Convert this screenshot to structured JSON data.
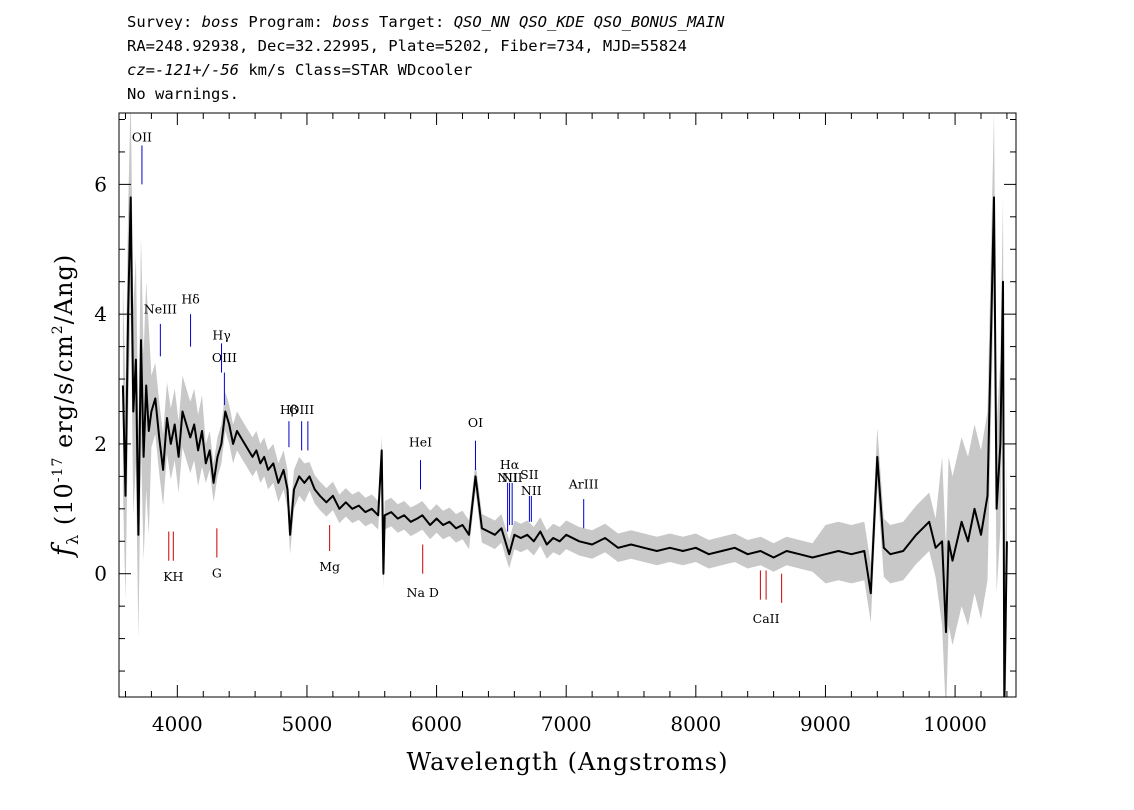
{
  "header": {
    "line1": {
      "survey_label": "Survey:",
      "survey": "boss",
      "program_label": "Program:",
      "program": "boss",
      "target_label": "Target:",
      "target": "QSO_NN QSO_KDE QSO_BONUS_MAIN"
    },
    "line2": "RA=248.92938, Dec=32.22995, Plate=5202, Fiber=734, MJD=55824",
    "line3": {
      "cz_prefix": "cz=",
      "cz_value": "-121+/-56",
      "cz_suffix": "km/s Class=STAR WDcooler"
    },
    "line4": "No warnings."
  },
  "colors": {
    "flux": "#000000",
    "error_band": "#c8c8c8",
    "emission_line": "#0000cc",
    "absorption_line": "#cc0000"
  },
  "chart_data": {
    "type": "line",
    "xlabel": "Wavelength (Angstroms)",
    "ylabel": "f_λ (10^-17 erg/s/cm^2/Ang)",
    "xlim": [
      3550,
      10470
    ],
    "ylim": [
      -1.9,
      7.1
    ],
    "xticks": [
      4000,
      5000,
      6000,
      7000,
      8000,
      9000,
      10000
    ],
    "yticks": [
      0,
      2,
      4,
      6
    ],
    "series": [
      {
        "x": [
          3580,
          3600,
          3620,
          3640,
          3660,
          3680,
          3700,
          3720,
          3740,
          3760,
          3780,
          3800,
          3830,
          3860,
          3890,
          3920,
          3950,
          3980,
          4010,
          4040,
          4070,
          4100,
          4130,
          4160,
          4190,
          4220,
          4250,
          4280,
          4310,
          4340,
          4370,
          4400,
          4430,
          4460,
          4490,
          4520,
          4550,
          4580,
          4610,
          4640,
          4670,
          4700,
          4740,
          4780,
          4820,
          4850,
          4870,
          4900,
          4940,
          4980,
          5020,
          5060,
          5100,
          5150,
          5200,
          5250,
          5300,
          5350,
          5400,
          5450,
          5500,
          5550,
          5577,
          5590,
          5600,
          5650,
          5700,
          5750,
          5800,
          5850,
          5890,
          5950,
          6000,
          6050,
          6100,
          6150,
          6200,
          6250,
          6300,
          6350,
          6400,
          6450,
          6500,
          6560,
          6600,
          6650,
          6700,
          6750,
          6800,
          6850,
          6900,
          6950,
          7000,
          7100,
          7200,
          7300,
          7400,
          7500,
          7600,
          7700,
          7800,
          7900,
          8000,
          8100,
          8200,
          8300,
          8400,
          8500,
          8600,
          8700,
          8800,
          8900,
          9000,
          9100,
          9200,
          9300,
          9350,
          9400,
          9450,
          9500,
          9600,
          9700,
          9800,
          9850,
          9900,
          9930,
          9950,
          9980,
          10050,
          10100,
          10150,
          10200,
          10250,
          10300,
          10320,
          10350,
          10370,
          10380,
          10400
        ],
        "values": [
          2.9,
          1.2,
          4.0,
          5.8,
          2.5,
          3.3,
          0.6,
          3.6,
          1.8,
          2.9,
          2.2,
          2.5,
          2.7,
          2.1,
          1.6,
          2.4,
          2.0,
          2.3,
          1.8,
          2.5,
          2.3,
          2.1,
          2.3,
          1.9,
          2.2,
          1.7,
          1.9,
          1.4,
          1.8,
          2.0,
          2.5,
          2.3,
          2.0,
          2.2,
          2.1,
          2.0,
          1.9,
          1.8,
          1.9,
          1.7,
          1.8,
          1.6,
          1.7,
          1.4,
          1.6,
          1.3,
          0.6,
          1.3,
          1.5,
          1.4,
          1.5,
          1.3,
          1.2,
          1.1,
          1.2,
          1.0,
          1.1,
          1.0,
          1.05,
          0.95,
          1.0,
          0.9,
          1.9,
          0.0,
          0.9,
          0.95,
          0.85,
          0.9,
          0.8,
          0.85,
          0.9,
          0.75,
          0.85,
          0.75,
          0.8,
          0.7,
          0.75,
          0.6,
          1.5,
          0.7,
          0.65,
          0.6,
          0.7,
          0.3,
          0.6,
          0.55,
          0.6,
          0.5,
          0.65,
          0.45,
          0.55,
          0.5,
          0.6,
          0.5,
          0.45,
          0.55,
          0.4,
          0.45,
          0.4,
          0.35,
          0.4,
          0.35,
          0.4,
          0.3,
          0.35,
          0.4,
          0.3,
          0.35,
          0.25,
          0.35,
          0.3,
          0.25,
          0.3,
          0.35,
          0.3,
          0.35,
          -0.3,
          1.8,
          0.4,
          0.3,
          0.35,
          0.6,
          0.8,
          0.4,
          0.5,
          -0.9,
          0.5,
          0.2,
          0.8,
          0.5,
          1.0,
          0.6,
          1.2,
          5.8,
          1.0,
          2.0,
          4.5,
          -2.0,
          0.5
        ]
      }
    ],
    "emission_lines": [
      {
        "label": "OII",
        "wavelength": 3727,
        "label_y": 6.6,
        "top": 6.6,
        "bottom": 6.0
      },
      {
        "label": "NeIII",
        "wavelength": 3869,
        "label_y": 3.95,
        "top": 3.85,
        "bottom": 3.35
      },
      {
        "label": "Hδ",
        "wavelength": 4102,
        "label_y": 4.1,
        "top": 4.0,
        "bottom": 3.5
      },
      {
        "label": "Hγ",
        "wavelength": 4341,
        "label_y": 3.55,
        "top": 3.55,
        "bottom": 3.1
      },
      {
        "label": "OIII",
        "wavelength": 4363,
        "label_y": 3.2,
        "top": 3.1,
        "bottom": 2.6
      },
      {
        "label": "Hβ",
        "wavelength": 4861,
        "label_y": 2.4,
        "top": 2.35,
        "bottom": 1.95
      },
      {
        "label": "OIII",
        "wavelength": 4959,
        "label_y": 2.4,
        "top": 2.35,
        "bottom": 1.9
      },
      {
        "label": "",
        "wavelength": 5007,
        "label_y": 2.4,
        "top": 2.35,
        "bottom": 1.9
      },
      {
        "label": "HeI",
        "wavelength": 5876,
        "label_y": 1.9,
        "top": 1.75,
        "bottom": 1.3
      },
      {
        "label": "OI",
        "wavelength": 6300,
        "label_y": 2.2,
        "top": 2.05,
        "bottom": 1.6
      },
      {
        "label": "NII",
        "wavelength": 6548,
        "label_y": 1.35,
        "top": 1.4,
        "bottom": 0.65
      },
      {
        "label": "Hα",
        "wavelength": 6563,
        "label_y": 1.55,
        "top": 1.4,
        "bottom": 0.75
      },
      {
        "label": "NII",
        "wavelength": 6583,
        "label_y": 1.35,
        "top": 1.4,
        "bottom": 0.75
      },
      {
        "label": "SII",
        "wavelength": 6716,
        "label_y": 1.4,
        "top": 1.2,
        "bottom": 0.8
      },
      {
        "label": "NII",
        "wavelength": 6731,
        "label_y": 1.15,
        "top": 1.2,
        "bottom": 0.8
      },
      {
        "label": "ArIII",
        "wavelength": 7135,
        "label_y": 1.25,
        "top": 1.15,
        "bottom": 0.7
      }
    ],
    "absorption_lines": [
      {
        "label": "",
        "wavelength": 3934,
        "top": 0.65,
        "bottom": 0.2
      },
      {
        "label": "KH",
        "wavelength": 3969,
        "top": 0.65,
        "bottom": 0.2,
        "label_y": -0.05
      },
      {
        "label": "G",
        "wavelength": 4305,
        "top": 0.7,
        "bottom": 0.25,
        "label_y": 0.0
      },
      {
        "label": "Mg",
        "wavelength": 5175,
        "top": 0.75,
        "bottom": 0.35,
        "label_y": 0.1
      },
      {
        "label": "Na D",
        "wavelength": 5893,
        "top": 0.45,
        "bottom": 0.0,
        "label_y": -0.3
      },
      {
        "label": "",
        "wavelength": 8498,
        "top": 0.05,
        "bottom": -0.4
      },
      {
        "label": "CaII",
        "wavelength": 8542,
        "top": 0.05,
        "bottom": -0.4,
        "label_y": -0.7
      },
      {
        "label": "",
        "wavelength": 8662,
        "top": 0.0,
        "bottom": -0.45
      }
    ]
  }
}
